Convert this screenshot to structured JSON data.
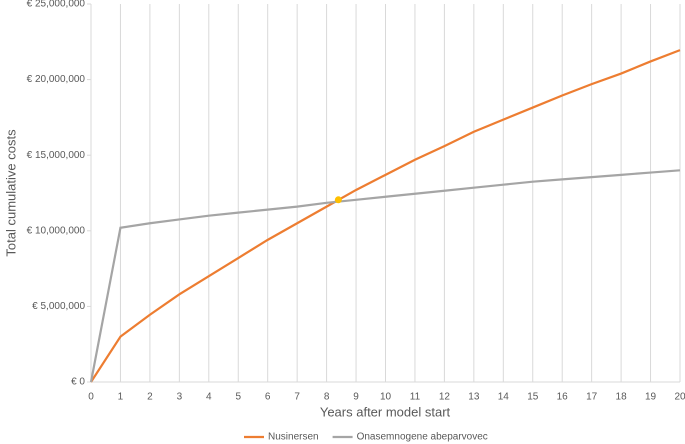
{
  "chart_data": {
    "type": "line",
    "x_label": "Years after model start",
    "y_label": "Total cumulative costs",
    "x": [
      0,
      1,
      2,
      3,
      4,
      5,
      6,
      7,
      8,
      9,
      10,
      11,
      12,
      13,
      14,
      15,
      16,
      17,
      18,
      19,
      20
    ],
    "series": [
      {
        "name": "Nusinersen",
        "color": "#ed7d31",
        "values": [
          0,
          3000000,
          4450000,
          5800000,
          7000000,
          8200000,
          9400000,
          10500000,
          11600000,
          12700000,
          13700000,
          14700000,
          15600000,
          16550000,
          17350000,
          18150000,
          18950000,
          19700000,
          20400000,
          21200000,
          21950000
        ]
      },
      {
        "name": "Onasemnogene abeparvovec",
        "color": "#a5a5a5",
        "values": [
          0,
          10200000,
          10500000,
          10750000,
          11000000,
          11200000,
          11400000,
          11600000,
          11850000,
          12050000,
          12250000,
          12450000,
          12650000,
          12850000,
          13050000,
          13250000,
          13400000,
          13550000,
          13700000,
          13850000,
          14000000
        ]
      }
    ],
    "highlight": {
      "x": 8.4,
      "y": 12050000,
      "color": "#ffc000"
    },
    "xlim": [
      0,
      20
    ],
    "ylim": [
      0,
      25000000
    ],
    "xticks": [
      0,
      1,
      2,
      3,
      4,
      5,
      6,
      7,
      8,
      9,
      10,
      11,
      12,
      13,
      14,
      15,
      16,
      17,
      18,
      19,
      20
    ],
    "yticks": [
      {
        "value": 0,
        "label": "€ 0"
      },
      {
        "value": 5000000,
        "label": "€ 5,000,000"
      },
      {
        "value": 10000000,
        "label": "€ 10,000,000"
      },
      {
        "value": 15000000,
        "label": "€ 15,000,000"
      },
      {
        "value": 20000000,
        "label": "€ 20,000,000"
      },
      {
        "value": 25000000,
        "label": "€ 25,000,000"
      }
    ],
    "grid": "x",
    "legend": "bottom"
  }
}
